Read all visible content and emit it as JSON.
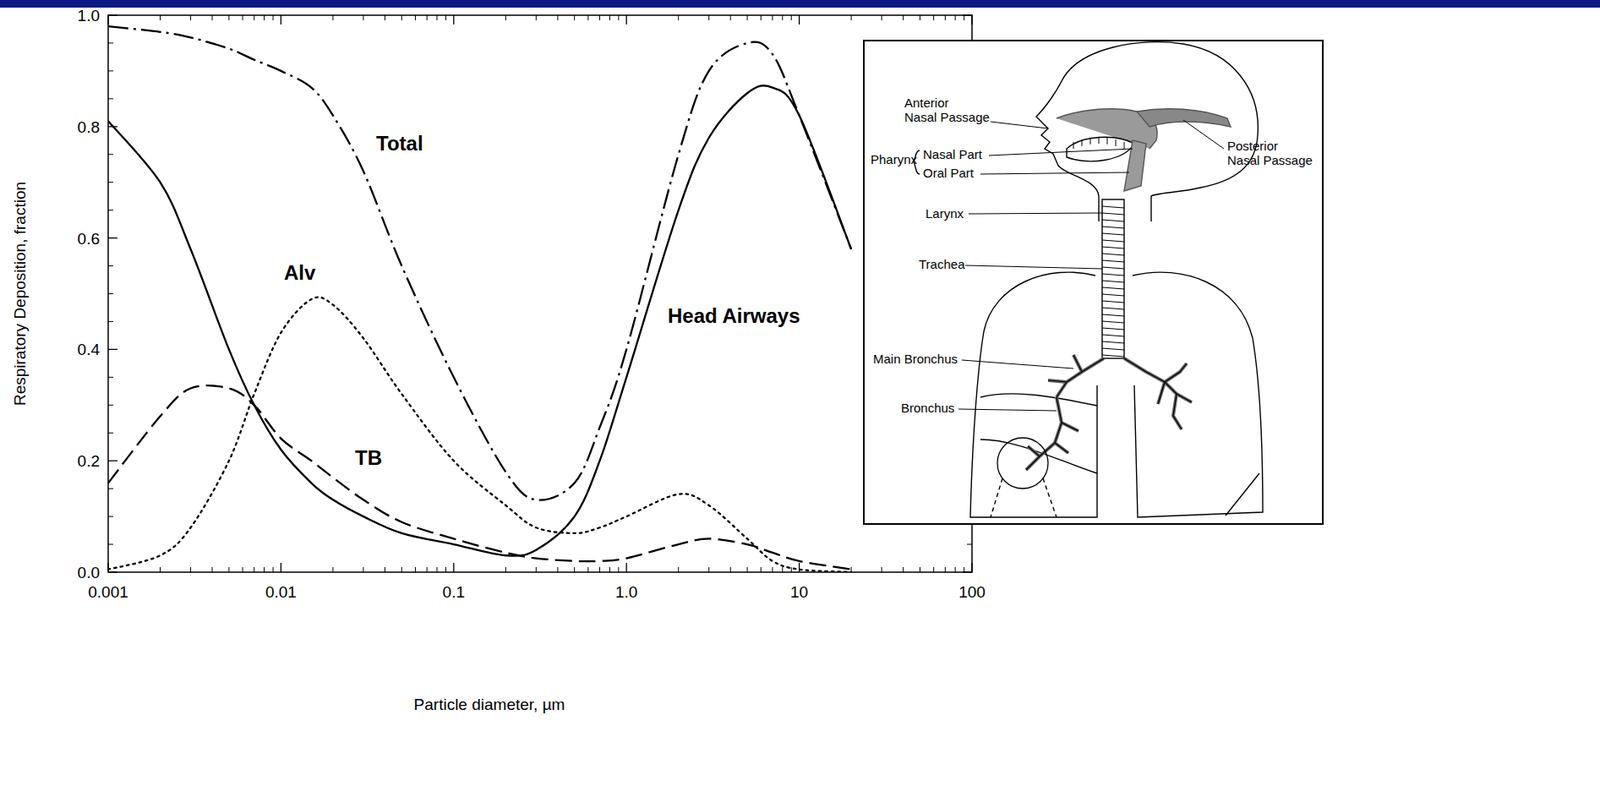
{
  "chart_data": {
    "type": "line",
    "x_label": "Particle diameter, µm",
    "y_label": "Respiratory Deposition, fraction",
    "log": "x",
    "grid": false,
    "xlim": [
      0.001,
      100
    ],
    "ylim": [
      0,
      1
    ],
    "xticks": [
      0.001,
      0.01,
      0.1,
      {
        "value": 1,
        "label": "1.0"
      },
      10,
      100
    ],
    "yticks": [
      {
        "value": 0,
        "label": "0.0"
      },
      0.2,
      0.4,
      0.6,
      0.8,
      {
        "value": 1,
        "label": "1.0"
      }
    ],
    "x": [
      0.001,
      0.002,
      0.003,
      0.005,
      0.007,
      0.01,
      0.015,
      0.02,
      0.03,
      0.05,
      0.1,
      0.2,
      0.3,
      0.5,
      0.7,
      1,
      2,
      3,
      5,
      7,
      10,
      20
    ],
    "series": [
      {
        "name": "Total",
        "color": "#000000",
        "line_style": "dashdot",
        "values": [
          0.98,
          0.97,
          0.96,
          0.94,
          0.92,
          0.9,
          0.87,
          0.82,
          0.72,
          0.55,
          0.35,
          0.18,
          0.13,
          0.16,
          0.26,
          0.4,
          0.75,
          0.9,
          0.95,
          0.93,
          0.82,
          0.58
        ]
      },
      {
        "name": "Head Airways",
        "color": "#000000",
        "line_style": "solid",
        "values": [
          0.81,
          0.7,
          0.58,
          0.4,
          0.3,
          0.22,
          0.16,
          0.13,
          0.1,
          0.07,
          0.05,
          0.03,
          0.04,
          0.1,
          0.2,
          0.35,
          0.65,
          0.78,
          0.86,
          0.87,
          0.82,
          0.58
        ]
      },
      {
        "name": "TB",
        "color": "#000000",
        "line_style": "dashed",
        "values": [
          0.16,
          0.28,
          0.33,
          0.33,
          0.3,
          0.24,
          0.2,
          0.17,
          0.13,
          0.09,
          0.06,
          0.035,
          0.025,
          0.02,
          0.02,
          0.025,
          0.05,
          0.06,
          0.05,
          0.035,
          0.02,
          0.005
        ]
      },
      {
        "name": "Alv",
        "color": "#000000",
        "line_style": "dotted",
        "values": [
          0.005,
          0.03,
          0.08,
          0.2,
          0.32,
          0.43,
          0.49,
          0.48,
          0.42,
          0.32,
          0.2,
          0.12,
          0.08,
          0.07,
          0.08,
          0.1,
          0.14,
          0.12,
          0.06,
          0.02,
          0.005,
          0
        ]
      }
    ]
  },
  "diagram": {
    "labels": [
      "Anterior Nasal Passage",
      "Posterior Nasal Passage",
      "Larynx",
      "Trachea",
      "Main Bronchus",
      "Bronchus"
    ],
    "pharynx": {
      "label": "Pharynx",
      "parts": [
        "Nasal Part",
        "Oral Part"
      ]
    }
  }
}
